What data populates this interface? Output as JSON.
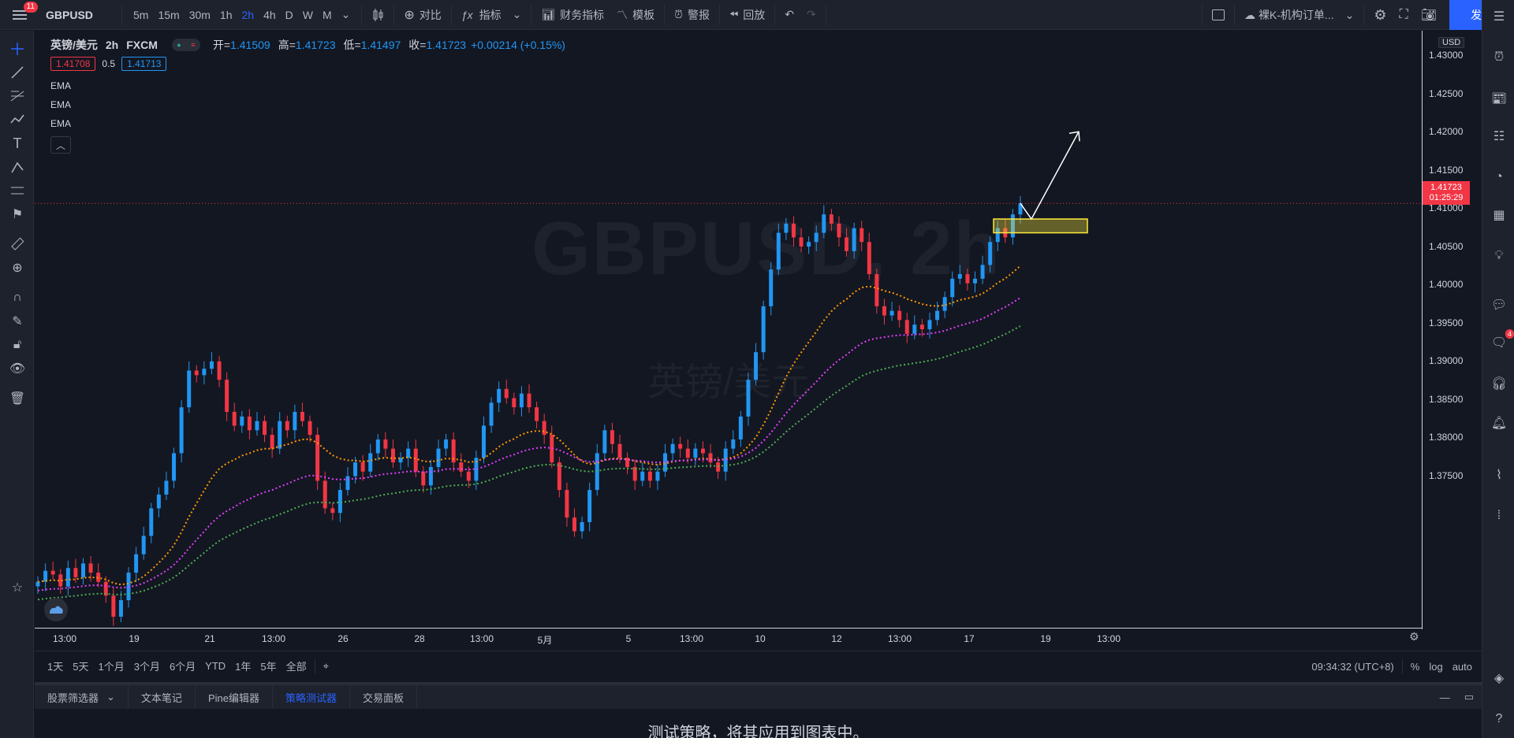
{
  "topbar": {
    "menu_badge": "11",
    "symbol": "GBPUSD",
    "intervals": [
      "5m",
      "15m",
      "30m",
      "1h",
      "2h",
      "4h",
      "D",
      "W",
      "M"
    ],
    "active_interval": "2h",
    "compare": "对比",
    "indicators": "指标",
    "financials": "财务指标",
    "templates": "模板",
    "alert": "警报",
    "replay": "回放",
    "layout_name": "裸K-机构订单...",
    "publish": "发表"
  },
  "legend": {
    "name": "英镑/美元",
    "interval": "2h",
    "exchange": "FXCM",
    "open_k": "开=",
    "open_v": "1.41509",
    "high_k": "高=",
    "high_v": "1.41723",
    "low_k": "低=",
    "low_v": "1.41497",
    "close_k": "收=",
    "close_v": "1.41723",
    "change": "+0.00214 (+0.15%)",
    "sell_price": "1.41708",
    "spread": "0.5",
    "buy_price": "1.41713",
    "indicators": [
      "EMA",
      "EMA",
      "EMA"
    ]
  },
  "watermark": {
    "main": "GBPUSD, 2h",
    "sub": "英镑/美元"
  },
  "price_scale": {
    "currency": "USD",
    "ticks": [
      "1.43000",
      "1.42500",
      "1.42000",
      "1.41500",
      "1.41000",
      "1.40500",
      "1.40000",
      "1.39500",
      "1.39000",
      "1.38500",
      "1.38000",
      "1.37500"
    ],
    "last_price": "1.41723",
    "countdown": "01:25:29"
  },
  "time_axis": [
    "13:00",
    "19",
    "21",
    "13:00",
    "26",
    "28",
    "13:00",
    "5月",
    "5",
    "13:00",
    "10",
    "12",
    "13:00",
    "17",
    "19",
    "13:00"
  ],
  "range_bar": {
    "ranges": [
      "1天",
      "5天",
      "1个月",
      "3个月",
      "6个月",
      "YTD",
      "1年",
      "5年",
      "全部"
    ],
    "clock": "09:34:32 (UTC+8)",
    "pct": "%",
    "log": "log",
    "auto": "auto"
  },
  "bottom_panel": {
    "tabs": [
      "股票筛选器",
      "文本笔记",
      "Pine编辑器",
      "策略测试器",
      "交易面板"
    ],
    "active_tab": "策略测试器",
    "message": "测试策略，将其应用到图表中。"
  },
  "right_sidebar": {
    "ideas_badge": "4"
  },
  "chart_data": {
    "type": "candlestick",
    "title": "GBPUSD, 2h",
    "ylim": [
      1.371,
      1.436
    ],
    "up_color": "#2196f3",
    "down_color": "#f23645",
    "ema_colors": [
      "#ff9800",
      "#e040fb",
      "#4caf50"
    ],
    "candles_close": [
      1.376,
      1.3772,
      1.3768,
      1.3755,
      1.3775,
      1.3765,
      1.378,
      1.377,
      1.376,
      1.3745,
      1.3722,
      1.374,
      1.377,
      1.379,
      1.381,
      1.384,
      1.3855,
      1.387,
      1.39,
      1.395,
      1.399,
      1.3985,
      1.3992,
      1.4,
      1.398,
      1.3945,
      1.393,
      1.394,
      1.3925,
      1.3935,
      1.392,
      1.3905,
      1.3935,
      1.3925,
      1.3945,
      1.3935,
      1.392,
      1.387,
      1.384,
      1.3835,
      1.386,
      1.3875,
      1.389,
      1.388,
      1.39,
      1.3915,
      1.3905,
      1.389,
      1.3895,
      1.3905,
      1.388,
      1.3865,
      1.3885,
      1.3905,
      1.3915,
      1.389,
      1.388,
      1.387,
      1.3895,
      1.393,
      1.3955,
      1.397,
      1.396,
      1.395,
      1.3965,
      1.395,
      1.3935,
      1.392,
      1.389,
      1.386,
      1.383,
      1.3815,
      1.3825,
      1.386,
      1.39,
      1.3925,
      1.391,
      1.3895,
      1.3885,
      1.387,
      1.388,
      1.387,
      1.388,
      1.39,
      1.391,
      1.3905,
      1.3895,
      1.3905,
      1.39,
      1.389,
      1.388,
      1.3905,
      1.3915,
      1.394,
      1.398,
      1.401,
      1.406,
      1.41,
      1.414,
      1.415,
      1.4135,
      1.4125,
      1.413,
      1.414,
      1.416,
      1.415,
      1.4135,
      1.412,
      1.4145,
      1.413,
      1.4095,
      1.406,
      1.405,
      1.4055,
      1.4045,
      1.403,
      1.404,
      1.4035,
      1.4045,
      1.4055,
      1.407,
      1.409,
      1.4095,
      1.4085,
      1.409,
      1.4105,
      1.413,
      1.4145,
      1.4135,
      1.416,
      1.4172
    ]
  }
}
